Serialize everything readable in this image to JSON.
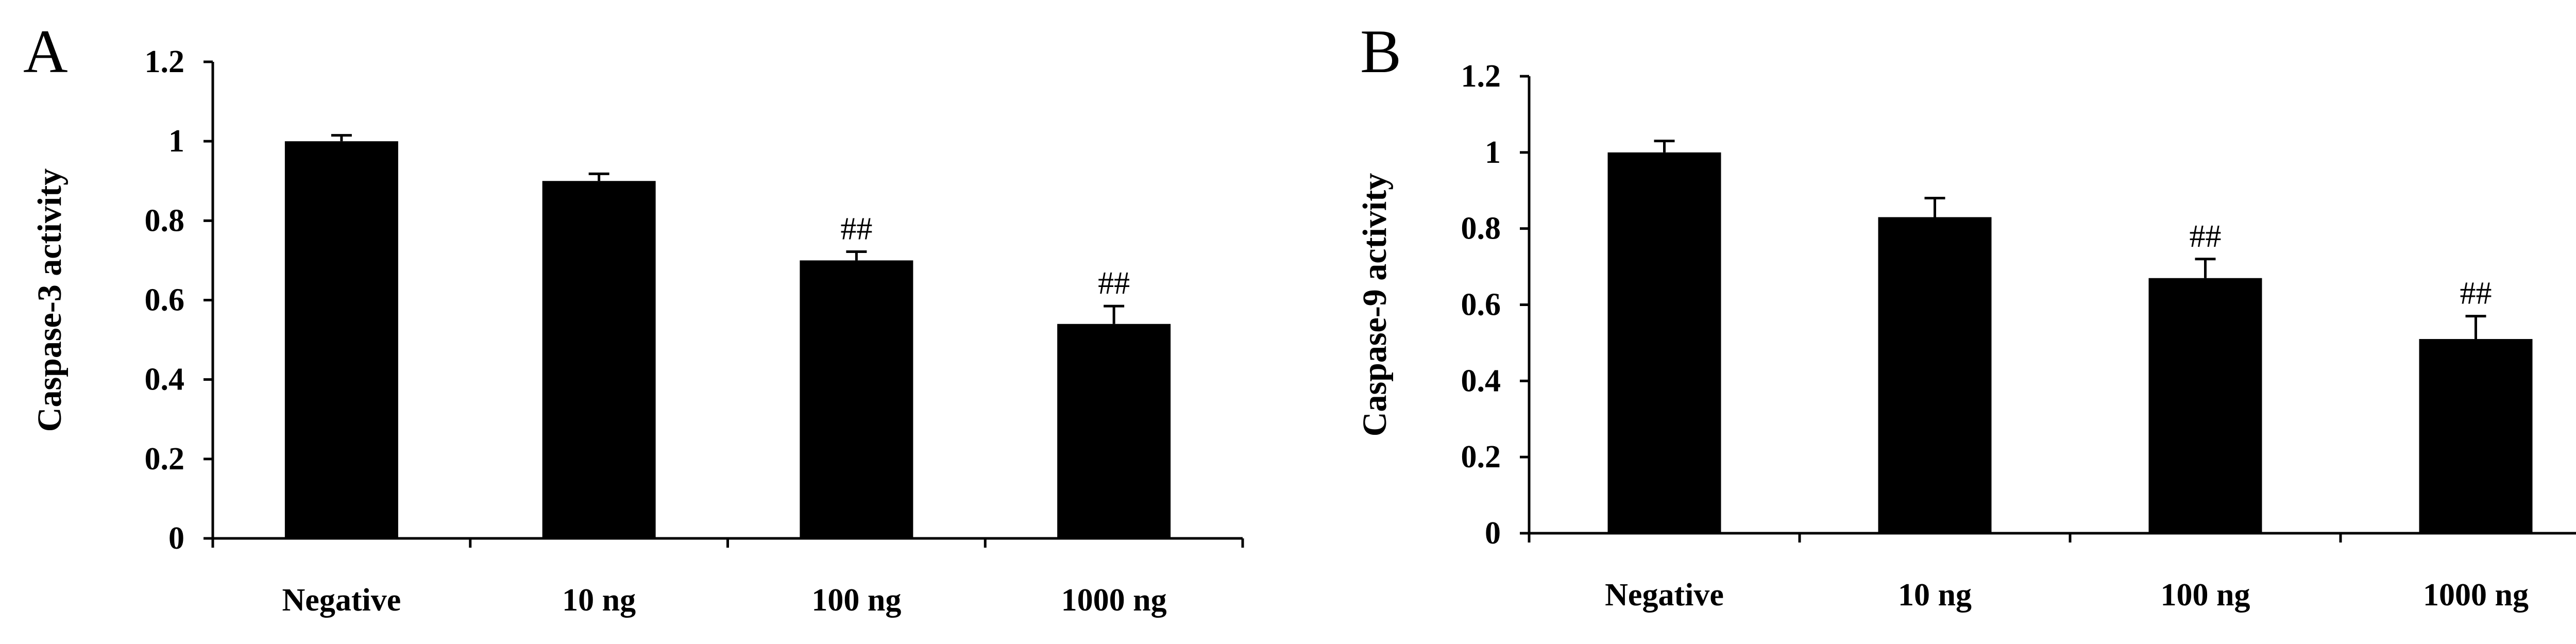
{
  "chart_data": [
    {
      "panel": "A",
      "type": "bar",
      "title": "",
      "xlabel": "",
      "ylabel": "Caspase-3 activity",
      "ylim": [
        0,
        1.2
      ],
      "yticks": [
        "0",
        "0.2",
        "0.4",
        "0.6",
        "0.8",
        "1",
        "1.2"
      ],
      "ytick_values": [
        0,
        0.2,
        0.4,
        0.6,
        0.8,
        1.0,
        1.2
      ],
      "categories": [
        "Negative",
        "10 ng",
        "100 ng",
        "1000 ng"
      ],
      "values": [
        1.0,
        0.9,
        0.7,
        0.54
      ],
      "errors": [
        0.015,
        0.018,
        0.022,
        0.045
      ],
      "annotations": [
        "",
        "",
        "##",
        "##"
      ],
      "grid": false
    },
    {
      "panel": "B",
      "type": "bar",
      "title": "",
      "xlabel": "",
      "ylabel": "Caspase-9 activity",
      "ylim": [
        0,
        1.2
      ],
      "yticks": [
        "0",
        "0.2",
        "0.4",
        "0.6",
        "0.8",
        "1",
        "1.2"
      ],
      "ytick_values": [
        0,
        0.2,
        0.4,
        0.6,
        0.8,
        1.0,
        1.2
      ],
      "categories": [
        "Negative",
        "10 ng",
        "100 ng",
        "1000 ng"
      ],
      "values": [
        1.0,
        0.83,
        0.67,
        0.51
      ],
      "errors": [
        0.03,
        0.05,
        0.05,
        0.06
      ],
      "annotations": [
        "",
        "",
        "##",
        "##"
      ],
      "grid": false
    }
  ],
  "colors": {
    "bar": "#000000",
    "axis": "#000000",
    "background": "#ffffff"
  }
}
